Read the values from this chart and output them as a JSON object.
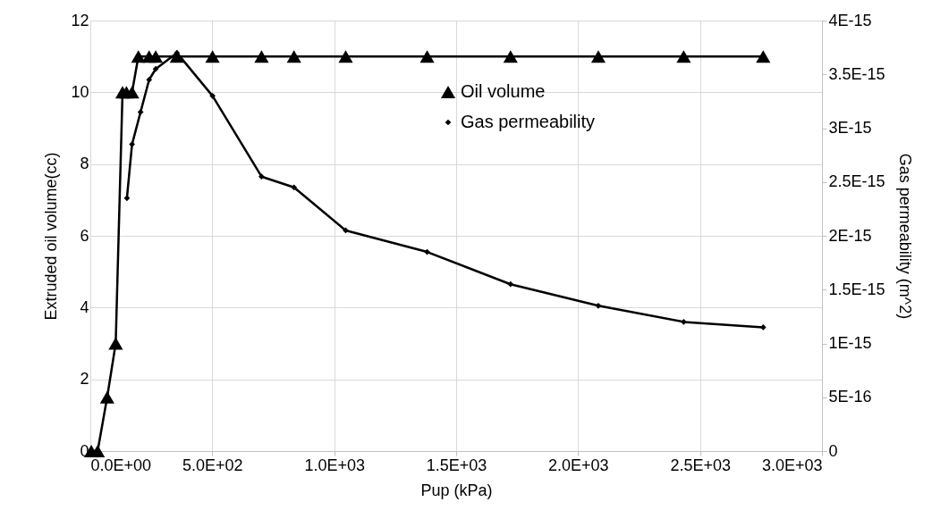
{
  "chart_data": {
    "type": "line",
    "xlabel": "Pup (kPa)",
    "ylabel": "Extruded oil volume(cc)",
    "y2label": "Gas permeability (m^2)",
    "xlim": [
      0,
      3000
    ],
    "xticks": [
      {
        "value": 0,
        "label": "0.0E+00"
      },
      {
        "value": 500,
        "label": "5.0E+02"
      },
      {
        "value": 1000,
        "label": "1.0E+03"
      },
      {
        "value": 1500,
        "label": "1.5E+03"
      },
      {
        "value": 2000,
        "label": "2.0E+03"
      },
      {
        "value": 2500,
        "label": "2.5E+03"
      },
      {
        "value": 3000,
        "label": "3.0E+03"
      }
    ],
    "ylim": [
      0,
      12
    ],
    "yticks": [
      0,
      2,
      4,
      6,
      8,
      10,
      12
    ],
    "y2lim": [
      0,
      4e-15
    ],
    "y2ticks": [
      {
        "value": 0,
        "label": "0"
      },
      {
        "value": 5e-16,
        "label": "5E-16"
      },
      {
        "value": 1e-15,
        "label": "1E-15"
      },
      {
        "value": 1.5e-15,
        "label": "1.5E-15"
      },
      {
        "value": 2e-15,
        "label": "2E-15"
      },
      {
        "value": 2.5e-15,
        "label": "2.5E-15"
      },
      {
        "value": 3e-15,
        "label": "3E-15"
      },
      {
        "value": 3.5e-15,
        "label": "3.5E-15"
      },
      {
        "value": 4e-15,
        "label": "4E-15"
      }
    ],
    "grid": true,
    "legend": "top right",
    "line_style": "solid",
    "series": [
      {
        "name": "Oil volume",
        "color": "#000000",
        "marker": "triangle",
        "x": [
          4,
          30,
          69,
          104,
          132,
          148,
          171,
          197,
          241,
          268,
          355,
          501,
          702,
          835,
          1047,
          1381,
          1723,
          2083,
          2433,
          2759
        ],
        "values": [
          0,
          0,
          1.5,
          3,
          10,
          10,
          10,
          11,
          11,
          11,
          11,
          11,
          11,
          11,
          11,
          11,
          11,
          11,
          11,
          11
        ]
      },
      {
        "name": "Gas permeability",
        "color": "#000000",
        "marker": "diamond",
        "axis": "y2",
        "x": [
          150,
          171,
          206,
          241,
          268,
          355,
          501,
          702,
          835,
          1047,
          1381,
          1723,
          2083,
          2433,
          2759
        ],
        "values": [
          2.35e-15,
          2.85e-15,
          3.15e-15,
          3.45e-15,
          3.55e-15,
          3.7e-15,
          3.3e-15,
          2.55e-15,
          2.45e-15,
          2.05e-15,
          1.85e-15,
          1.55e-15,
          1.35e-15,
          1.2e-15,
          1.15e-15
        ]
      }
    ]
  }
}
